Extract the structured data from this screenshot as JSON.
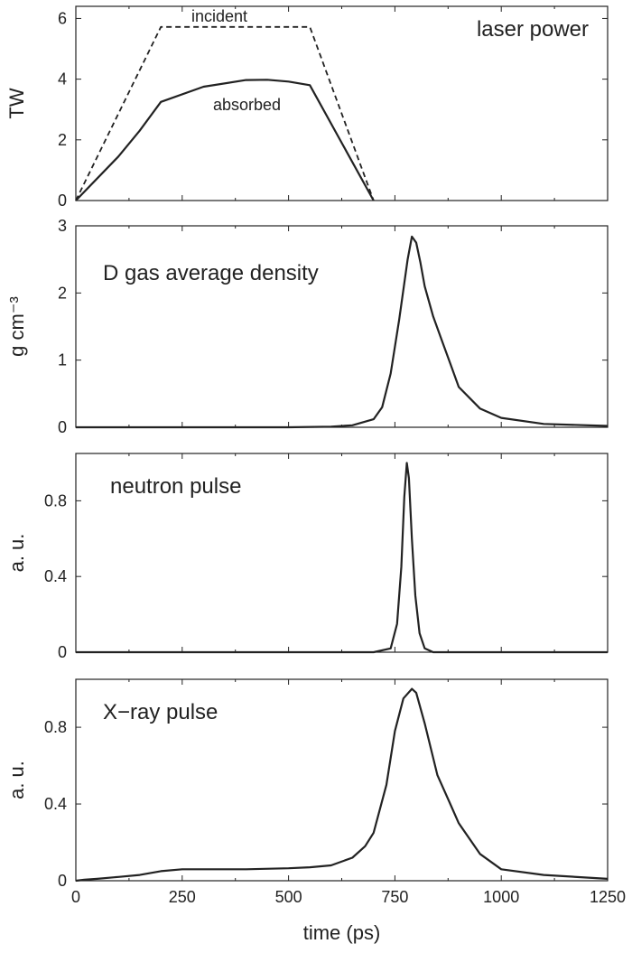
{
  "chart_data": [
    {
      "type": "line",
      "title": "laser power",
      "ylabel": "TW",
      "xlabel": "",
      "xlim": [
        0,
        1250
      ],
      "ylim": [
        0,
        6.4
      ],
      "yticks": [
        0,
        2,
        4,
        6
      ],
      "grid": false,
      "annotations": [
        "incident",
        "absorbed"
      ],
      "series": [
        {
          "style": "dashed",
          "x": [
            0,
            200,
            550,
            700
          ],
          "y": [
            0,
            5.72,
            5.72,
            0
          ]
        },
        {
          "style": "solid",
          "x": [
            0,
            100,
            150,
            200,
            300,
            400,
            450,
            500,
            550,
            700
          ],
          "y": [
            0,
            1.45,
            2.3,
            3.25,
            3.75,
            3.97,
            3.98,
            3.92,
            3.8,
            0
          ]
        }
      ]
    },
    {
      "type": "line",
      "title": "D gas average density",
      "ylabel": "g cm⁻³",
      "xlabel": "",
      "xlim": [
        0,
        1250
      ],
      "ylim": [
        0,
        3
      ],
      "yticks": [
        0,
        1,
        2,
        3
      ],
      "grid": false,
      "series": [
        {
          "x": [
            0,
            500,
            600,
            650,
            700,
            720,
            740,
            760,
            780,
            790,
            800,
            810,
            820,
            840,
            860,
            880,
            900,
            950,
            1000,
            1100,
            1250
          ],
          "y": [
            0,
            0,
            0.01,
            0.03,
            0.12,
            0.3,
            0.8,
            1.6,
            2.5,
            2.84,
            2.75,
            2.45,
            2.1,
            1.65,
            1.3,
            0.95,
            0.6,
            0.28,
            0.14,
            0.05,
            0.02
          ]
        }
      ]
    },
    {
      "type": "line",
      "title": "neutron pulse",
      "ylabel": "a. u.",
      "xlabel": "",
      "xlim": [
        0,
        1250
      ],
      "ylim": [
        0,
        1.05
      ],
      "yticks": [
        0,
        0.4,
        0.8
      ],
      "grid": false,
      "series": [
        {
          "x": [
            0,
            700,
            740,
            755,
            765,
            772,
            778,
            783,
            790,
            798,
            808,
            820,
            840,
            1250
          ],
          "y": [
            0,
            0,
            0.02,
            0.15,
            0.45,
            0.82,
            1.0,
            0.92,
            0.6,
            0.3,
            0.1,
            0.02,
            0,
            0
          ]
        }
      ]
    },
    {
      "type": "line",
      "title": "X−ray pulse",
      "ylabel": "a. u.",
      "xlabel": "time (ps)",
      "xlim": [
        0,
        1250
      ],
      "ylim": [
        0,
        1.05
      ],
      "xticks": [
        0,
        250,
        500,
        750,
        1000,
        1250
      ],
      "yticks": [
        0,
        0.4,
        0.8
      ],
      "grid": false,
      "series": [
        {
          "x": [
            0,
            20,
            50,
            100,
            150,
            200,
            250,
            300,
            400,
            500,
            550,
            600,
            650,
            680,
            700,
            730,
            750,
            770,
            790,
            800,
            820,
            850,
            880,
            900,
            950,
            1000,
            1100,
            1250
          ],
          "y": [
            0,
            0.005,
            0.01,
            0.02,
            0.03,
            0.05,
            0.06,
            0.06,
            0.06,
            0.065,
            0.07,
            0.08,
            0.12,
            0.18,
            0.25,
            0.5,
            0.78,
            0.95,
            1.0,
            0.98,
            0.82,
            0.55,
            0.4,
            0.3,
            0.14,
            0.06,
            0.03,
            0.01
          ]
        }
      ]
    }
  ]
}
